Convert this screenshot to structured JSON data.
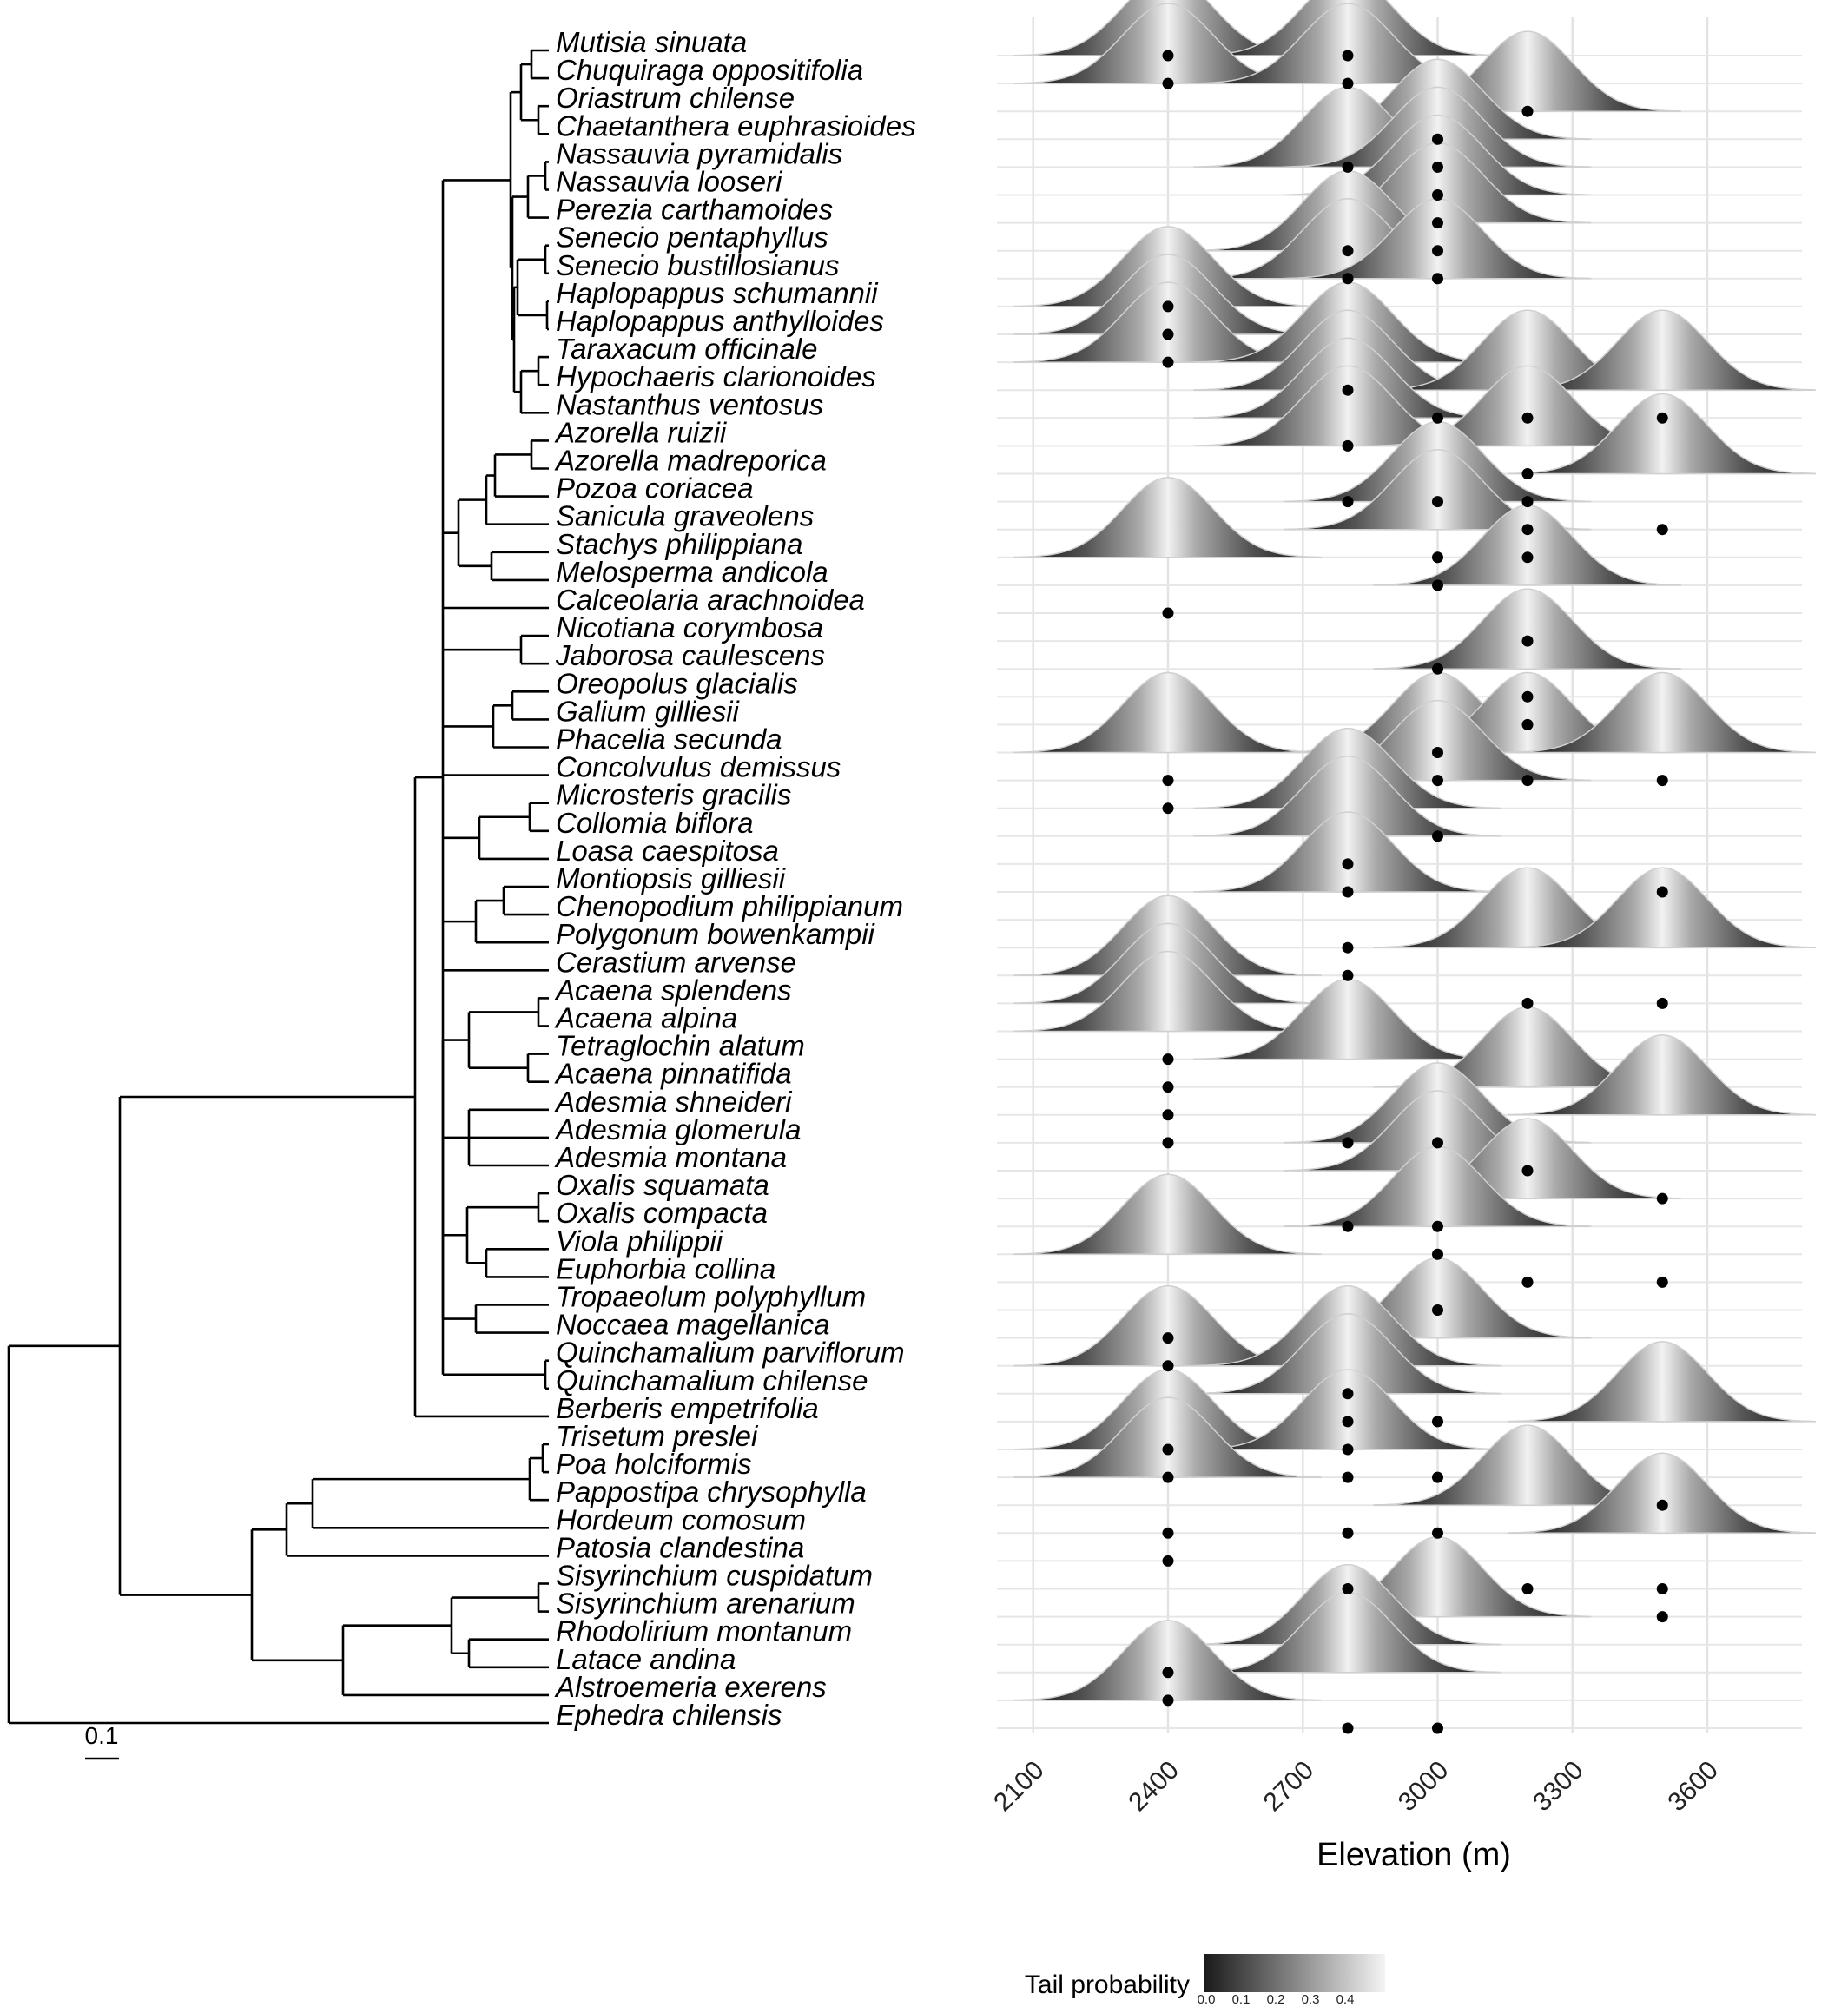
{
  "chart_data": {
    "type": "ridgeline",
    "xlabel": "Elevation (m)",
    "xlim": [
      2050,
      3820
    ],
    "x_ticks": [
      2100,
      2400,
      2700,
      3000,
      3300,
      3600
    ],
    "legend": {
      "title": "Tail probability",
      "ticks": [
        "0.0",
        "0.1",
        "0.2",
        "0.3",
        "0.4"
      ],
      "placement": "bottom"
    },
    "tree_scale_label": "0.1",
    "species": [
      {
        "name": "Mutisia sinuata",
        "points": [
          2400,
          2800
        ],
        "peaks": [
          2400,
          2800
        ]
      },
      {
        "name": "Chuquiraga oppositifolia",
        "points": [
          2400,
          2800
        ],
        "peaks": [
          2400,
          2800
        ]
      },
      {
        "name": "Oriastrum chilense",
        "points": [
          3200
        ],
        "peaks": [
          3200
        ]
      },
      {
        "name": "Chaetanthera euphrasioides",
        "points": [
          3000
        ],
        "peaks": [
          3000
        ]
      },
      {
        "name": "Nassauvia pyramidalis",
        "points": [
          2800,
          3000
        ],
        "peaks": [
          2800,
          3000
        ]
      },
      {
        "name": "Nassauvia looseri",
        "points": [
          3000
        ],
        "peaks": [
          3000
        ]
      },
      {
        "name": "Perezia carthamoides",
        "points": [
          3000
        ],
        "peaks": [
          3000
        ]
      },
      {
        "name": "Senecio pentaphyllus",
        "points": [
          2800,
          3000
        ],
        "peaks": [
          2800
        ]
      },
      {
        "name": "Senecio bustillosianus",
        "points": [
          2800,
          3000
        ],
        "peaks": [
          2800,
          3000
        ]
      },
      {
        "name": "Haplopappus schumannii",
        "points": [
          2400
        ],
        "peaks": [
          2400
        ]
      },
      {
        "name": "Haplopappus anthylloides",
        "points": [
          2400
        ],
        "peaks": [
          2400
        ]
      },
      {
        "name": "Taraxacum officinale",
        "points": [
          2400
        ],
        "peaks": [
          2400,
          2800
        ]
      },
      {
        "name": "Hypochaeris clarionoides",
        "points": [
          2800
        ],
        "peaks": [
          2800,
          3200,
          3500
        ]
      },
      {
        "name": "Nastanthus ventosus",
        "points": [
          3000,
          3200,
          3500
        ],
        "peaks": [
          2800
        ]
      },
      {
        "name": "Azorella ruizii",
        "points": [
          2800
        ],
        "peaks": [
          2800,
          3200
        ]
      },
      {
        "name": "Azorella madreporica",
        "points": [
          3200
        ],
        "peaks": [
          3500
        ]
      },
      {
        "name": "Pozoa coriacea",
        "points": [
          2800,
          3000,
          3200
        ],
        "peaks": [
          3000
        ]
      },
      {
        "name": "Sanicula graveolens",
        "points": [
          3200,
          3500
        ],
        "peaks": [
          3000
        ]
      },
      {
        "name": "Stachys philippiana",
        "points": [
          3000,
          3200
        ],
        "peaks": [
          2400
        ]
      },
      {
        "name": "Melosperma andicola",
        "points": [
          3000
        ],
        "peaks": [
          3200
        ]
      },
      {
        "name": "Calceolaria arachnoidea",
        "points": [
          2400
        ],
        "peaks": []
      },
      {
        "name": "Nicotiana corymbosa",
        "points": [
          3200
        ],
        "peaks": []
      },
      {
        "name": "Jaborosa caulescens",
        "points": [
          3000
        ],
        "peaks": [
          3200
        ]
      },
      {
        "name": "Oreopolus glacialis",
        "points": [
          3200
        ],
        "peaks": []
      },
      {
        "name": "Galium gilliesii",
        "points": [
          3200
        ],
        "peaks": []
      },
      {
        "name": "Phacelia secunda",
        "points": [
          3000
        ],
        "peaks": [
          2400,
          3000,
          3200,
          3500
        ]
      },
      {
        "name": "Concolvulus demissus",
        "points": [
          2400,
          3000,
          3200,
          3500
        ],
        "peaks": [
          3000
        ]
      },
      {
        "name": "Microsteris gracilis",
        "points": [
          2400
        ],
        "peaks": [
          2800
        ]
      },
      {
        "name": "Collomia biflora",
        "points": [
          3000
        ],
        "peaks": [
          2800
        ]
      },
      {
        "name": "Loasa caespitosa",
        "points": [
          2800
        ],
        "peaks": []
      },
      {
        "name": "Montiopsis gilliesii",
        "points": [
          2800,
          3500
        ],
        "peaks": [
          2800
        ]
      },
      {
        "name": "Chenopodium philippianum",
        "points": [],
        "peaks": []
      },
      {
        "name": "Polygonum bowenkampii",
        "points": [
          2800
        ],
        "peaks": [
          3200,
          3500
        ]
      },
      {
        "name": "Cerastium arvense",
        "points": [
          2800
        ],
        "peaks": [
          2400
        ]
      },
      {
        "name": "Acaena splendens",
        "points": [
          3200,
          3500
        ],
        "peaks": [
          2400
        ]
      },
      {
        "name": "Acaena alpina",
        "points": [],
        "peaks": [
          2400
        ]
      },
      {
        "name": "Tetraglochin alatum",
        "points": [
          2400
        ],
        "peaks": [
          2800
        ]
      },
      {
        "name": "Acaena pinnatifida",
        "points": [
          2400
        ],
        "peaks": [
          3200
        ]
      },
      {
        "name": "Adesmia shneideri",
        "points": [
          2400
        ],
        "peaks": [
          3500
        ]
      },
      {
        "name": "Adesmia glomerula",
        "points": [
          2400,
          2800,
          3000
        ],
        "peaks": [
          3000
        ]
      },
      {
        "name": "Adesmia montana",
        "points": [
          3200
        ],
        "peaks": [
          3000
        ]
      },
      {
        "name": "Oxalis squamata",
        "points": [
          3500
        ],
        "peaks": [
          3200
        ]
      },
      {
        "name": "Oxalis compacta",
        "points": [
          2800,
          3000
        ],
        "peaks": [
          3000
        ]
      },
      {
        "name": "Viola philippii",
        "points": [
          3000
        ],
        "peaks": [
          2400
        ]
      },
      {
        "name": "Euphorbia collina",
        "points": [
          3200,
          3500
        ],
        "peaks": []
      },
      {
        "name": "Tropaeolum polyphyllum",
        "points": [
          3000
        ],
        "peaks": []
      },
      {
        "name": "Noccaea magellanica",
        "points": [
          2400
        ],
        "peaks": [
          3000
        ]
      },
      {
        "name": "Quinchamalium parviflorum",
        "points": [
          2400
        ],
        "peaks": [
          2400,
          2800
        ]
      },
      {
        "name": "Quinchamalium chilense",
        "points": [
          2800
        ],
        "peaks": [
          2800
        ]
      },
      {
        "name": "Berberis empetrifolia",
        "points": [
          2800,
          3000
        ],
        "peaks": [
          3500
        ]
      },
      {
        "name": "Trisetum preslei",
        "points": [
          2400,
          2800
        ],
        "peaks": [
          2400,
          2800
        ]
      },
      {
        "name": "Poa holciformis",
        "points": [
          2400,
          2800,
          3000
        ],
        "peaks": [
          2400
        ]
      },
      {
        "name": "Pappostipa chrysophylla",
        "points": [
          3500
        ],
        "peaks": [
          3200
        ]
      },
      {
        "name": "Hordeum comosum",
        "points": [
          2400,
          2800,
          3000
        ],
        "peaks": [
          3500
        ]
      },
      {
        "name": "Patosia clandestina",
        "points": [
          2400
        ],
        "peaks": []
      },
      {
        "name": "Sisyrinchium cuspidatum",
        "points": [
          2800,
          3200,
          3500
        ],
        "peaks": []
      },
      {
        "name": "Sisyrinchium arenarium",
        "points": [
          3500
        ],
        "peaks": [
          3000
        ]
      },
      {
        "name": "Rhodolirium montanum",
        "points": [],
        "peaks": [
          2800
        ]
      },
      {
        "name": "Latace andina",
        "points": [
          2400
        ],
        "peaks": [
          2800
        ]
      },
      {
        "name": "Alstroemeria exerens",
        "points": [
          2400
        ],
        "peaks": [
          2400
        ]
      },
      {
        "name": "Ephedra chilensis",
        "points": [
          2800,
          3000
        ],
        "peaks": []
      }
    ]
  }
}
